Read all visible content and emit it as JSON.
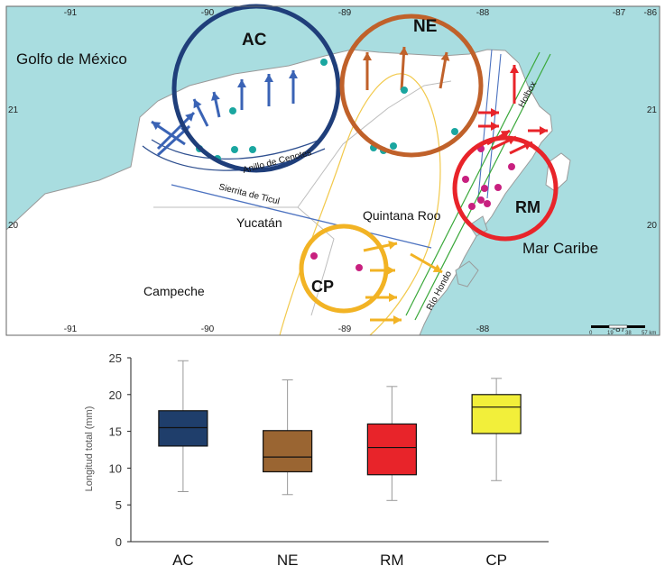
{
  "map": {
    "lon_ticks": [
      "-91",
      "-90",
      "-89",
      "-88",
      "-87",
      "-86"
    ],
    "lat_ticks": [
      "21",
      "20"
    ],
    "labels": {
      "golfo": "Golfo de México",
      "mar": "Mar Caribe",
      "yucatan": "Yucatán",
      "quintana": "Quintana Roo",
      "campeche": "Campeche",
      "anillo": "Anillo de Cenotes",
      "sierrita": "Sierrita de Ticul",
      "holbox": "Holbox",
      "rio": "Río Hondo"
    },
    "regions": [
      {
        "id": "AC",
        "label": "AC",
        "color": "#1f3e7a"
      },
      {
        "id": "NE",
        "label": "NE",
        "color": "#c0612a"
      },
      {
        "id": "RM",
        "label": "RM",
        "color": "#e8242a"
      },
      {
        "id": "CP",
        "label": "CP",
        "color": "#f2b324"
      }
    ],
    "scale_labels": [
      "0",
      "19",
      "38",
      "57 km"
    ],
    "colors": {
      "sea": "#a9dde0",
      "land": "#ffffff",
      "coast": "#9a9a9a",
      "teal_point": "#1aa6a0",
      "magenta_point": "#c8207f"
    }
  },
  "chart_data": {
    "type": "box",
    "categories": [
      "AC",
      "NE",
      "RM",
      "CP"
    ],
    "ylabel": "Longitud total (mm)",
    "ylim": [
      0,
      25
    ],
    "yticks": [
      0,
      5,
      10,
      15,
      20,
      25
    ],
    "boxes": [
      {
        "name": "AC",
        "min": 6.8,
        "q1": 13.0,
        "median": 15.5,
        "q3": 17.8,
        "max": 24.6,
        "color": "#1f3e6b"
      },
      {
        "name": "NE",
        "min": 6.4,
        "q1": 9.5,
        "median": 11.5,
        "q3": 15.1,
        "max": 22.0,
        "color": "#9a6532"
      },
      {
        "name": "RM",
        "min": 5.6,
        "q1": 9.1,
        "median": 12.8,
        "q3": 16.0,
        "max": 21.1,
        "color": "#e8242a"
      },
      {
        "name": "CP",
        "min": 8.3,
        "q1": 14.7,
        "median": 18.3,
        "q3": 20.0,
        "max": 22.2,
        "color": "#f2ef3a"
      }
    ]
  }
}
